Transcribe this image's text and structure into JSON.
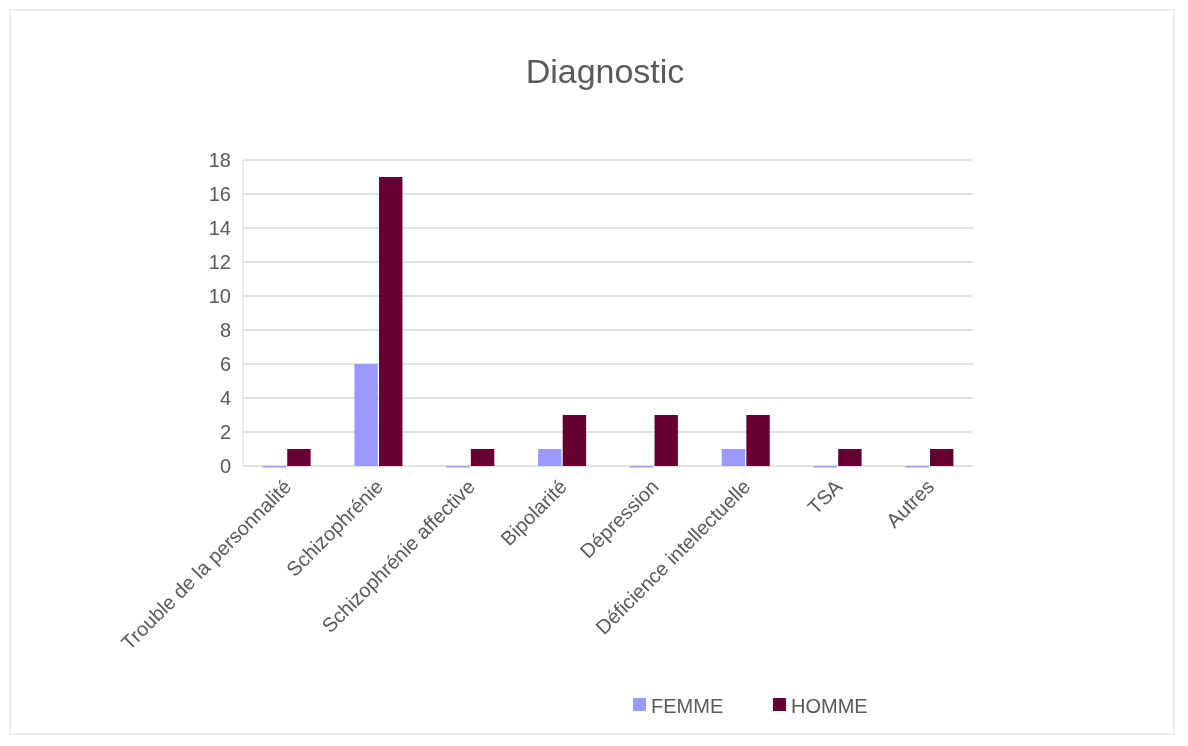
{
  "chart_data": {
    "type": "bar",
    "title": "Diagnostic",
    "categories": [
      "Trouble de la personnalité",
      "Schizophrénie",
      "Schizophrénie affective",
      "Bipolarité",
      "Dépression",
      "Déficience intellectuelle",
      "TSA",
      "Autres"
    ],
    "series": [
      {
        "name": "FEMME",
        "color": "#9999ff",
        "values": [
          0,
          6,
          0,
          1,
          0,
          1,
          0,
          0
        ]
      },
      {
        "name": "HOMME",
        "color": "#660033",
        "values": [
          1,
          17,
          1,
          3,
          3,
          3,
          1,
          1
        ]
      }
    ],
    "ylim": [
      0,
      18
    ],
    "yticks": [
      0,
      2,
      4,
      6,
      8,
      10,
      12,
      14,
      16,
      18
    ],
    "grid": "y",
    "legend": "bottom"
  }
}
